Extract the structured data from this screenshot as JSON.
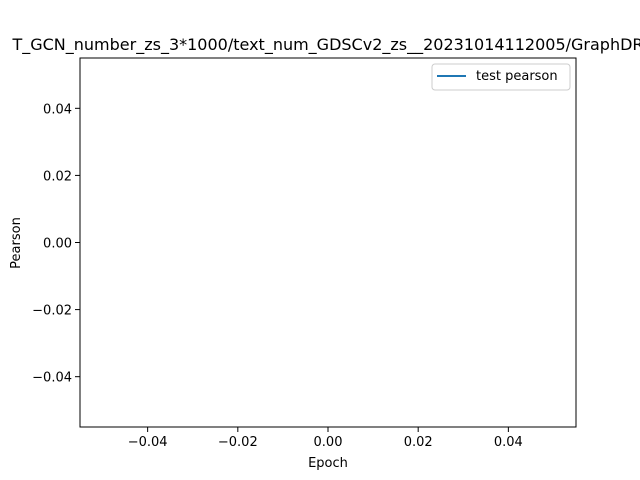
{
  "chart_data": {
    "type": "line",
    "title": "T_GCN_number_zs_3*1000/text_num_GDSCv2_zs__20231014112005/GraphDR",
    "xlabel": "Epoch",
    "ylabel": "Pearson",
    "xlim": [
      -0.055,
      0.055
    ],
    "ylim": [
      -0.055,
      0.055
    ],
    "xticks": [
      -0.04,
      -0.02,
      0.0,
      0.02,
      0.04
    ],
    "xtick_labels": [
      "−0.04",
      "−0.02",
      "0.00",
      "0.02",
      "0.04"
    ],
    "yticks": [
      -0.04,
      -0.02,
      0.0,
      0.02,
      0.04
    ],
    "ytick_labels": [
      "−0.04",
      "−0.02",
      "0.00",
      "0.02",
      "0.04"
    ],
    "grid": false,
    "legend_position": "top-right",
    "series": [
      {
        "name": "test pearson",
        "color": "#1f77b4",
        "x": [],
        "y": []
      }
    ]
  }
}
